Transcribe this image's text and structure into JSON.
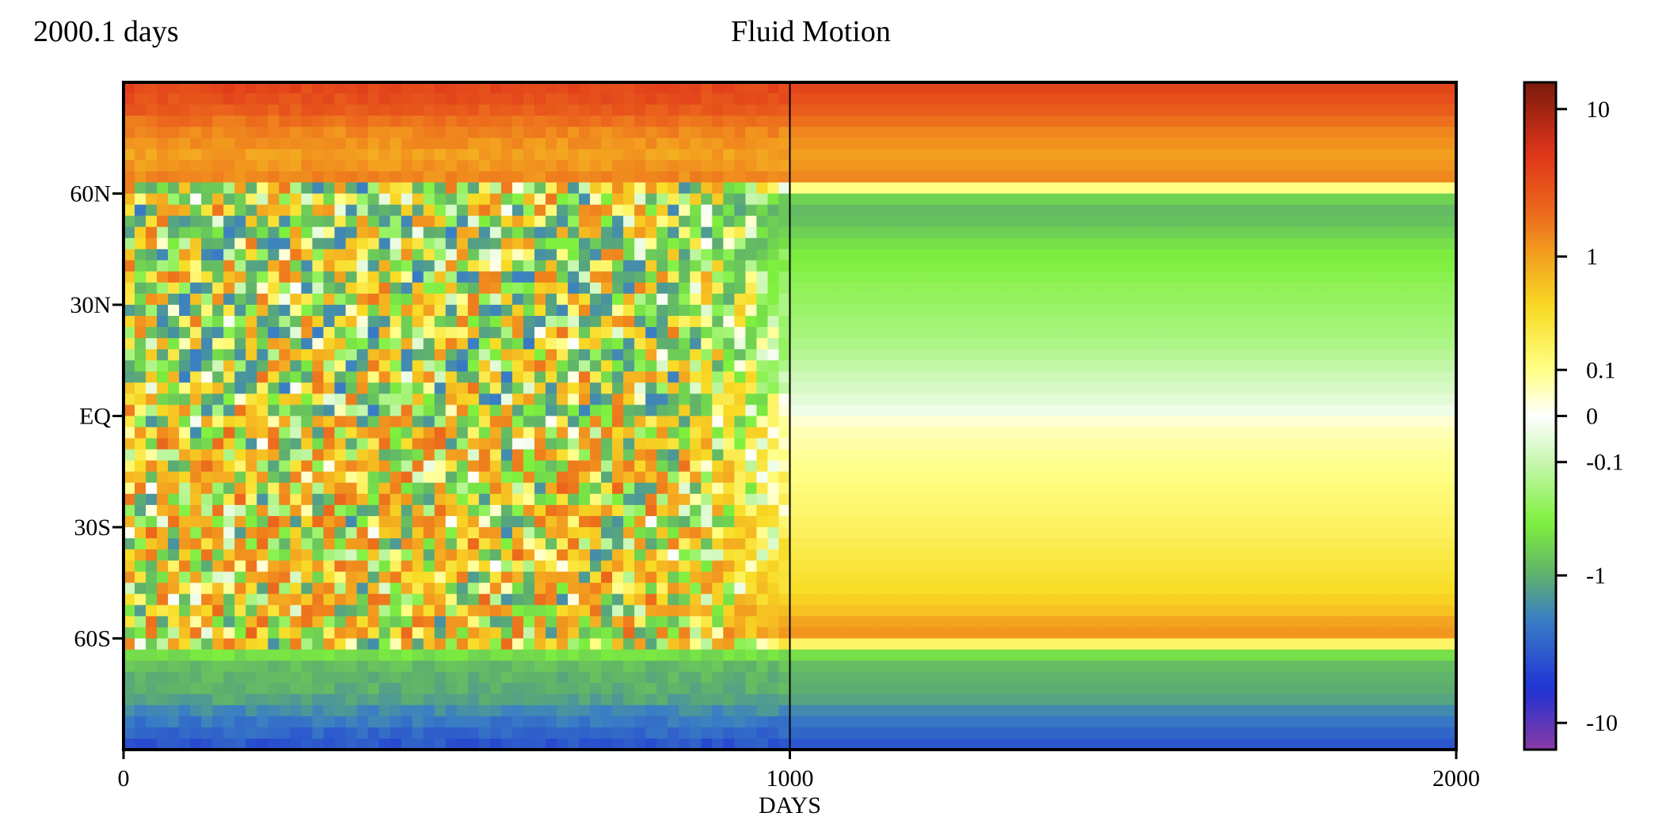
{
  "header": {
    "time_label": "2000.1 days",
    "title": "Fluid Motion"
  },
  "chart_data": {
    "type": "heatmap",
    "title": "Fluid Motion",
    "xlabel": "DAYS",
    "ylabel": "",
    "xlim": [
      0,
      2000
    ],
    "ylim": [
      -90,
      90
    ],
    "x_ticks": [
      {
        "value": 0,
        "label": "0"
      },
      {
        "value": 1000,
        "label": "1000"
      },
      {
        "value": 2000,
        "label": "2000"
      }
    ],
    "y_ticks": [
      {
        "value": 60,
        "label": "60N"
      },
      {
        "value": 30,
        "label": "30N"
      },
      {
        "value": 0,
        "label": "EQ"
      },
      {
        "value": -30,
        "label": "30S"
      },
      {
        "value": -60,
        "label": "60S"
      }
    ],
    "divider_x": 1000,
    "colorbar": {
      "scale": "symlog",
      "range": [
        -15,
        15
      ],
      "ticks": [
        {
          "value": 10,
          "label": "10"
        },
        {
          "value": 1,
          "label": "1"
        },
        {
          "value": 0.1,
          "label": "0.1"
        },
        {
          "value": 0,
          "label": "0"
        },
        {
          "value": -0.1,
          "label": "-0.1"
        },
        {
          "value": -1,
          "label": "-1"
        },
        {
          "value": -10,
          "label": "-10"
        }
      ],
      "stops": [
        {
          "value": 15,
          "color": "#7a1a0c"
        },
        {
          "value": 5,
          "color": "#e0361a"
        },
        {
          "value": 2,
          "color": "#ec6a1c"
        },
        {
          "value": 1,
          "color": "#f3a21f"
        },
        {
          "value": 0.4,
          "color": "#f8dc25"
        },
        {
          "value": 0.1,
          "color": "#ffff86"
        },
        {
          "value": 0,
          "color": "#ffffff"
        },
        {
          "value": -0.1,
          "color": "#c8f7b0"
        },
        {
          "value": -0.4,
          "color": "#7ef03c"
        },
        {
          "value": -1,
          "color": "#5fb06c"
        },
        {
          "value": -2,
          "color": "#3a7fc4"
        },
        {
          "value": -6,
          "color": "#1f32d4"
        },
        {
          "value": -15,
          "color": "#8a3aa6"
        }
      ]
    },
    "zonal_profile_steady": [
      {
        "lat": 90,
        "value": 4
      },
      {
        "lat": 84,
        "value": 3
      },
      {
        "lat": 78,
        "value": 1.5
      },
      {
        "lat": 70,
        "value": 1.0
      },
      {
        "lat": 63,
        "value": 1.5
      },
      {
        "lat": 61.5,
        "value": 0.1
      },
      {
        "lat": 60,
        "value": -0.5
      },
      {
        "lat": 55,
        "value": -0.9
      },
      {
        "lat": 45,
        "value": -0.45
      },
      {
        "lat": 35,
        "value": -0.3
      },
      {
        "lat": 20,
        "value": -0.18
      },
      {
        "lat": 10,
        "value": -0.08
      },
      {
        "lat": 1,
        "value": -0.02
      },
      {
        "lat": 0,
        "value": 0
      },
      {
        "lat": -2,
        "value": 0.04
      },
      {
        "lat": -15,
        "value": 0.1
      },
      {
        "lat": -30,
        "value": 0.18
      },
      {
        "lat": -45,
        "value": 0.35
      },
      {
        "lat": -52,
        "value": 0.55
      },
      {
        "lat": -58,
        "value": 1.3
      },
      {
        "lat": -61,
        "value": 0.4
      },
      {
        "lat": -62.5,
        "value": -0.3
      },
      {
        "lat": -68,
        "value": -0.9
      },
      {
        "lat": -76,
        "value": -1.1
      },
      {
        "lat": -84,
        "value": -2.5
      },
      {
        "lat": -90,
        "value": -4
      }
    ],
    "description_regimes": [
      {
        "x_range": [
          0,
          800
        ],
        "state": "chaotic"
      },
      {
        "x_range": [
          800,
          1000
        ],
        "state": "transitional"
      },
      {
        "x_range": [
          1000,
          2000
        ],
        "state": "steady"
      }
    ]
  }
}
